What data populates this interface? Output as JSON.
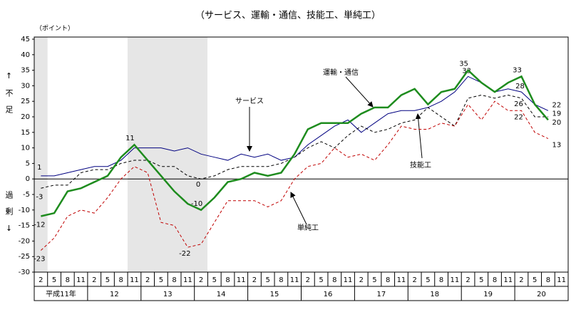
{
  "chart_data": {
    "type": "line",
    "title": "（サービス、運輸・通信、技能工、単純工）",
    "y_unit": "（ポイント）",
    "y_upper_label": "↑不足",
    "y_lower_label": "過剰↓",
    "categories": [
      "2",
      "5",
      "8",
      "11",
      "2",
      "5",
      "8",
      "11",
      "2",
      "5",
      "8",
      "11",
      "2",
      "5",
      "8",
      "11",
      "2",
      "5",
      "8",
      "11",
      "2",
      "5",
      "8",
      "11",
      "2",
      "5",
      "8",
      "11",
      "2",
      "5",
      "8",
      "11",
      "2",
      "5",
      "8",
      "11",
      "2",
      "5",
      "8",
      "11"
    ],
    "years": [
      "平成11年",
      "12",
      "13",
      "14",
      "15",
      "16",
      "17",
      "18",
      "19",
      "20"
    ],
    "ylim": [
      -30,
      45
    ],
    "yticks": [
      -30,
      -25,
      -20,
      -15,
      -10,
      -5,
      0,
      5,
      10,
      15,
      20,
      25,
      30,
      35,
      40,
      45
    ],
    "series": [
      {
        "name": "サービス",
        "color": "#000080",
        "width": 1,
        "dash": false,
        "labeled_indices": [
          0,
          32,
          36,
          38
        ],
        "values": [
          1,
          1,
          2,
          3,
          4,
          4,
          6,
          10,
          10,
          10,
          9,
          10,
          8,
          7,
          6,
          8,
          7,
          8,
          6,
          7,
          11,
          14,
          17,
          19,
          15,
          18,
          21,
          22,
          22,
          23,
          25,
          28,
          33,
          31,
          28,
          29,
          28,
          24,
          22,
          null
        ]
      },
      {
        "name": "運輸・通信",
        "color": "#000000",
        "width": 1,
        "dash": true,
        "labeled_indices": [
          0,
          12,
          36,
          38
        ],
        "values": [
          -3,
          -2,
          -2,
          2,
          3,
          3,
          5,
          6,
          6,
          4,
          4,
          1,
          0,
          1,
          3,
          4,
          4,
          4,
          5,
          7,
          10,
          12,
          10,
          14,
          17,
          15,
          16,
          18,
          19,
          23,
          20,
          17,
          26,
          27,
          26,
          27,
          26,
          20,
          20,
          null
        ]
      },
      {
        "name": "技能工",
        "color": "#1e8c1e",
        "width": 2.5,
        "dash": false,
        "labeled_indices": [
          0,
          7,
          12,
          32,
          36,
          38
        ],
        "values": [
          -12,
          -11,
          -4,
          -3,
          -1,
          1,
          7,
          11,
          6,
          1,
          -4,
          -8,
          -10,
          -6,
          -1,
          0,
          2,
          1,
          2,
          8,
          16,
          18,
          18,
          18,
          21,
          23,
          23,
          27,
          29,
          24,
          28,
          29,
          35,
          31,
          28,
          31,
          33,
          24,
          19,
          null
        ]
      },
      {
        "name": "単純工",
        "color": "#c00000",
        "width": 1,
        "dash": true,
        "labeled_indices": [
          0,
          11,
          36,
          38
        ],
        "values": [
          -23,
          -19,
          -12,
          -10,
          -11,
          -6,
          0,
          4,
          2,
          -14,
          -15,
          -22,
          -21,
          -14,
          -7,
          -7,
          -7,
          -9,
          -7,
          0,
          4,
          5,
          10,
          7,
          8,
          6,
          11,
          17,
          16,
          16,
          18,
          17,
          24,
          19,
          25,
          22,
          22,
          15,
          13,
          null
        ]
      }
    ]
  }
}
